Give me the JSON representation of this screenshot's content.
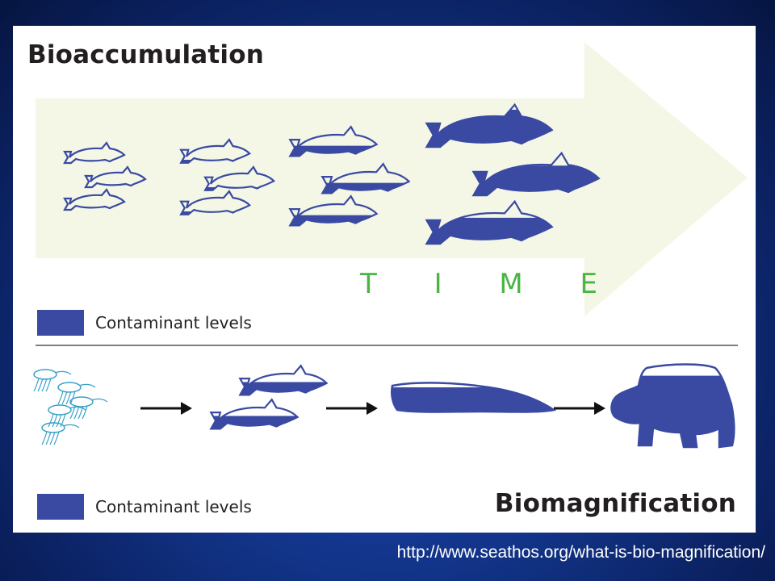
{
  "top_section": {
    "title": "Bioaccumulation",
    "time_label": "T I M E",
    "legend_label": "Contaminant levels"
  },
  "bottom_section": {
    "title": "Biomagnification",
    "legend_label": "Contaminant levels"
  },
  "footer": {
    "source_url": "http://www.seathos.org/what-is-bio-magnification/"
  },
  "colors": {
    "contaminant": "#3a4aa3",
    "arrow_fill": "#f4f7e5",
    "time_text": "#4bb543",
    "background": "#123489"
  },
  "fish_groups": [
    {
      "stage": 1,
      "contaminant_fraction": [
        0.0,
        0.0,
        0.0
      ]
    },
    {
      "stage": 2,
      "contaminant_fraction": [
        0.15,
        0.15,
        0.15
      ]
    },
    {
      "stage": 3,
      "contaminant_fraction": [
        0.4,
        0.4,
        0.4
      ]
    },
    {
      "stage": 4,
      "contaminant_fraction": [
        1.0,
        0.8,
        0.7
      ]
    }
  ],
  "food_chain": [
    {
      "organism": "plankton",
      "icon": "plankton-icon",
      "contaminant_fraction": 0.0
    },
    {
      "organism": "fish",
      "icon": "fish-icon",
      "contaminant_fraction": 0.5
    },
    {
      "organism": "seal",
      "icon": "seal-icon",
      "contaminant_fraction": 0.8
    },
    {
      "organism": "polar bear",
      "icon": "polar-bear-icon",
      "contaminant_fraction": 0.85
    }
  ]
}
